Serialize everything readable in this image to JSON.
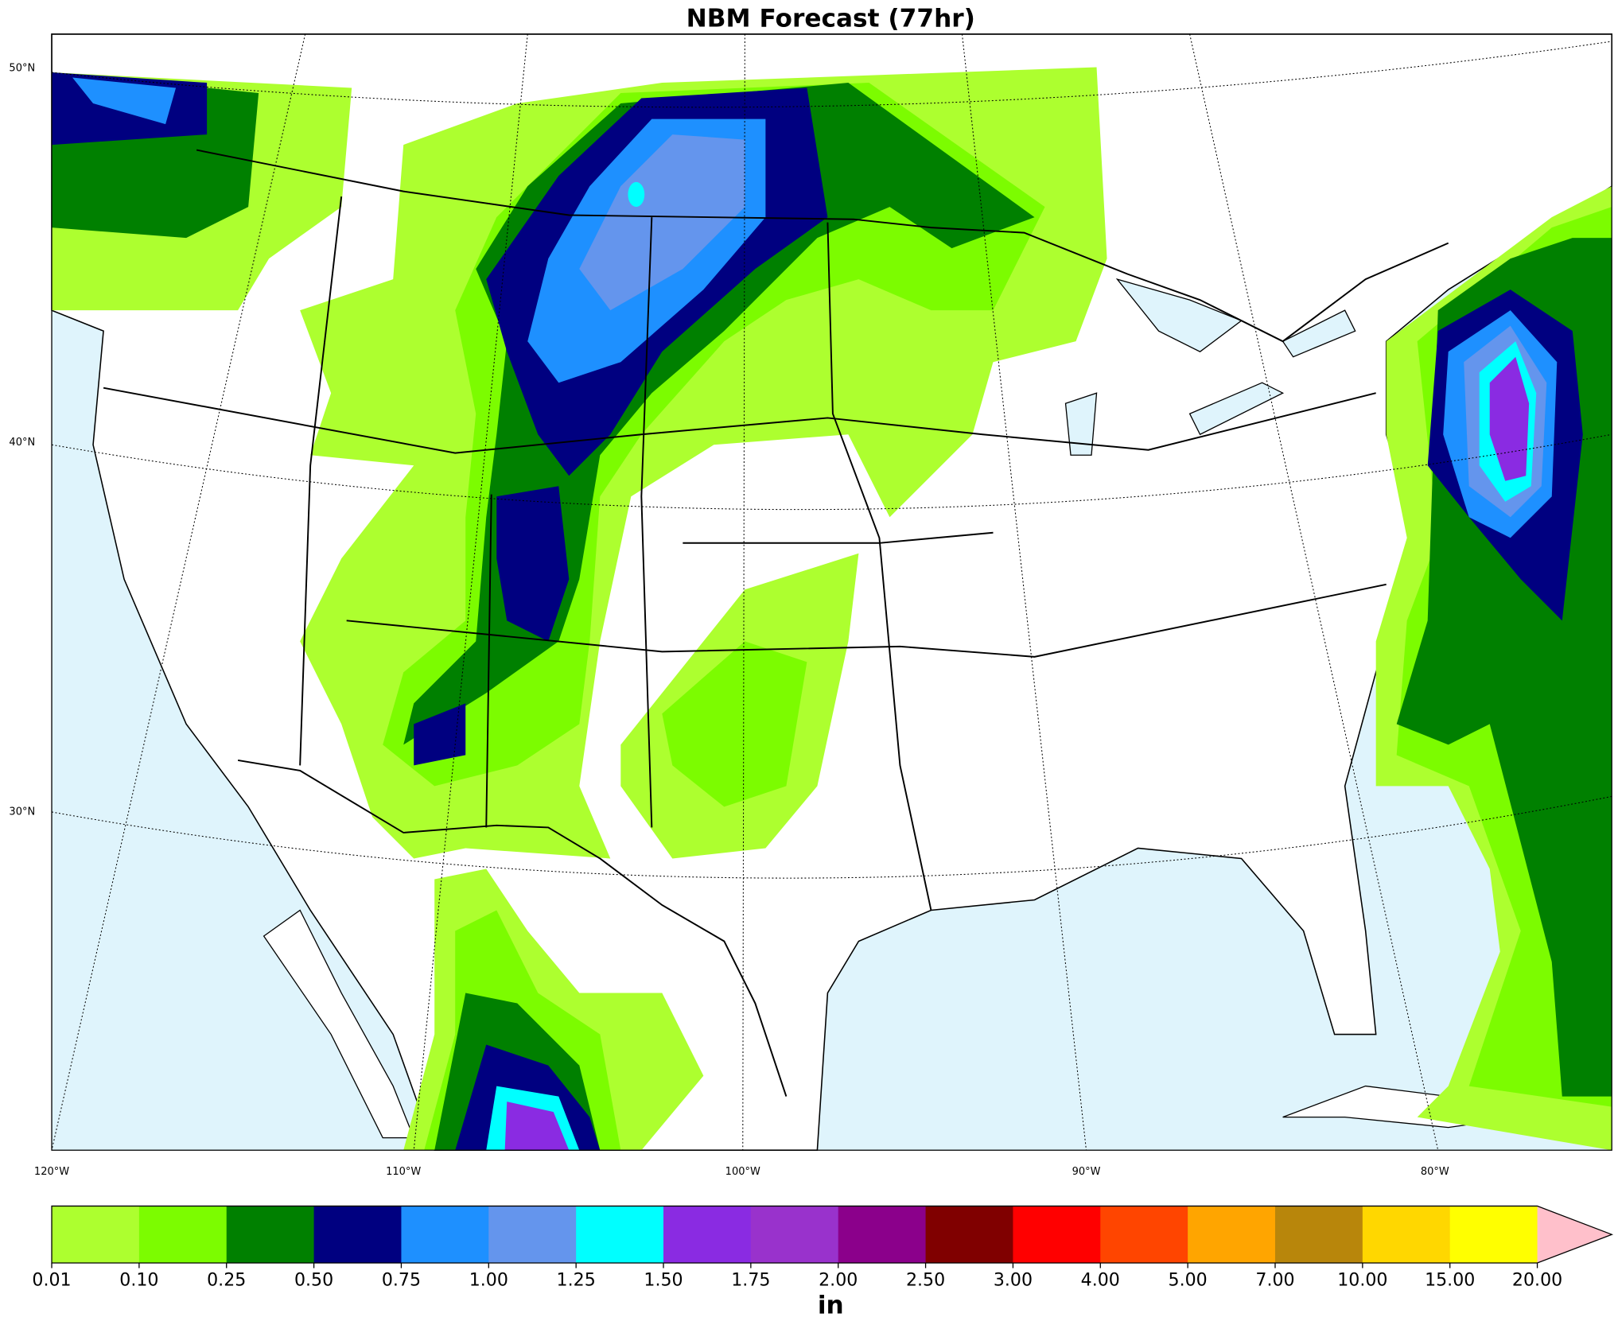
{
  "title": "NBM Forecast (77hr)",
  "lat_labels": [
    "50°N",
    "40°N",
    "30°N"
  ],
  "lon_labels": [
    "120°W",
    "110°W",
    "100°W",
    "90°W",
    "80°W"
  ],
  "colorbar": {
    "ticks": [
      "0.01",
      "0.10",
      "0.25",
      "0.50",
      "0.75",
      "1.00",
      "1.25",
      "1.50",
      "1.75",
      "2.00",
      "2.50",
      "3.00",
      "4.00",
      "5.00",
      "7.00",
      "10.00",
      "15.00",
      "20.00"
    ],
    "colors": [
      "#adff2f",
      "#7cfc00",
      "#008000",
      "#000080",
      "#1e90ff",
      "#6495ed",
      "#00ffff",
      "#8a2be2",
      "#9932cc",
      "#8b008b",
      "#800000",
      "#ff0000",
      "#ff4500",
      "#ffa500",
      "#b8860b",
      "#ffd700",
      "#ffff00"
    ],
    "extend_color": "#ffc0cb",
    "label": "in"
  }
}
